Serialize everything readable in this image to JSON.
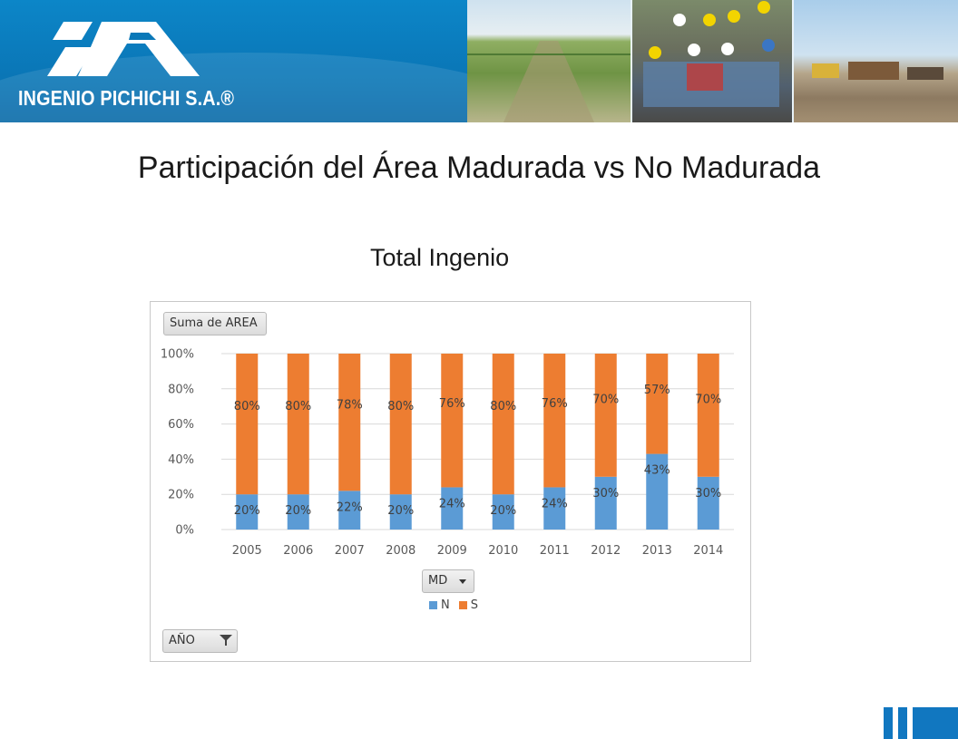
{
  "header": {
    "company_name": "INGENIO PICHICHI S.A.®",
    "logo_icon": "ip-logo-icon",
    "brand_color": "#0a78b8"
  },
  "title": "Participación del Área Madurada vs No Madurada",
  "subtitle": "Total Ingenio",
  "pivot": {
    "values_field": "Suma de AREA",
    "legend_field": "MD",
    "axis_field": "AÑO"
  },
  "chart_data": {
    "type": "bar",
    "stacked": true,
    "categories": [
      "2005",
      "2006",
      "2007",
      "2008",
      "2009",
      "2010",
      "2011",
      "2012",
      "2013",
      "2014"
    ],
    "series": [
      {
        "name": "N",
        "color": "#5b9bd5",
        "values": [
          20,
          20,
          22,
          20,
          24,
          20,
          24,
          30,
          43,
          30
        ]
      },
      {
        "name": "S",
        "color": "#ed7d31",
        "values": [
          80,
          80,
          78,
          80,
          76,
          80,
          76,
          70,
          57,
          70
        ]
      }
    ],
    "yticks": [
      "0%",
      "20%",
      "40%",
      "60%",
      "80%",
      "100%"
    ],
    "ylim": [
      0,
      100
    ],
    "grid": true,
    "legend_position": "bottom"
  }
}
